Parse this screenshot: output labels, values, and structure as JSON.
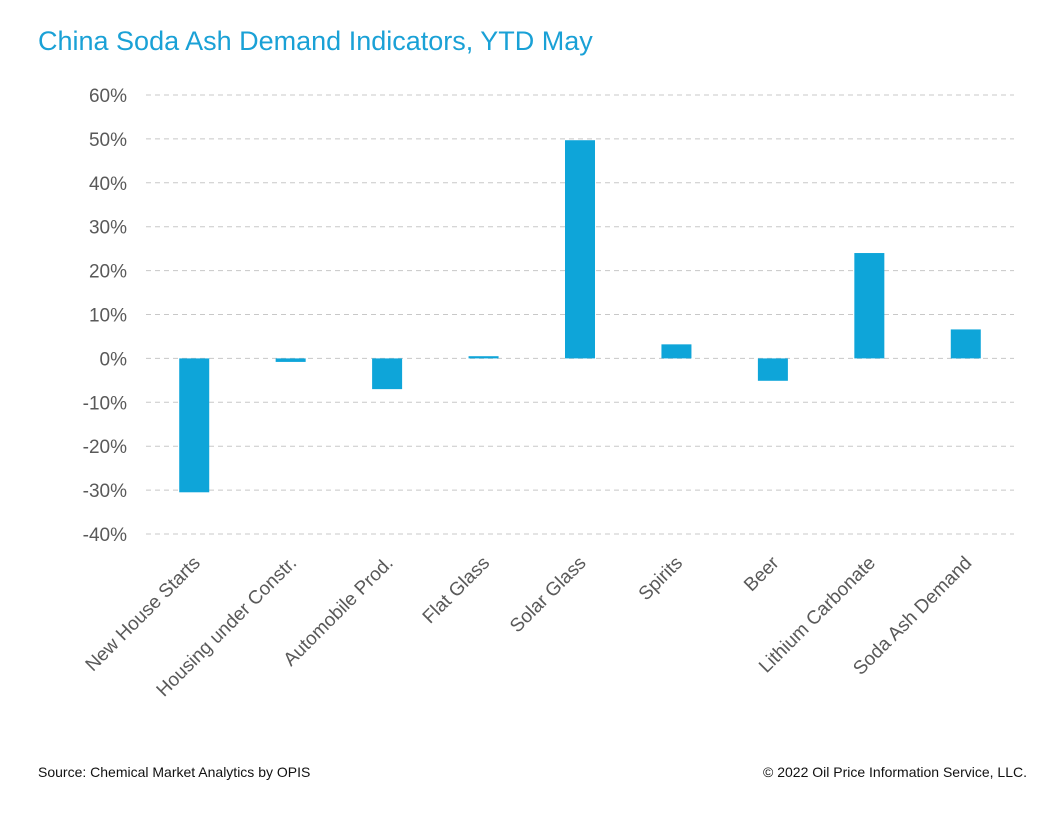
{
  "chart_data": {
    "type": "bar",
    "title": "China Soda Ash Demand Indicators, YTD May",
    "categories": [
      "New House Starts",
      "Housing under Constr.",
      "Automobile Prod.",
      "Flat Glass",
      "Solar Glass",
      "Spirits",
      "Beer",
      "Lithium Carbonate",
      "Soda Ash Demand"
    ],
    "values": [
      -30.5,
      -0.8,
      -7.0,
      0.5,
      49.7,
      3.2,
      -5.1,
      24.0,
      6.6
    ],
    "y_ticks": [
      "60%",
      "50%",
      "40%",
      "30%",
      "20%",
      "10%",
      "0%",
      "-10%",
      "-20%",
      "-30%",
      "-40%"
    ],
    "ylim": [
      -40,
      60
    ],
    "unit": "%",
    "grid": true,
    "bar_color": "#0ea5d9"
  },
  "footer": {
    "source": "Source: Chemical Market Analytics by OPIS",
    "copyright": "© 2022 Oil Price Information Service, LLC."
  }
}
